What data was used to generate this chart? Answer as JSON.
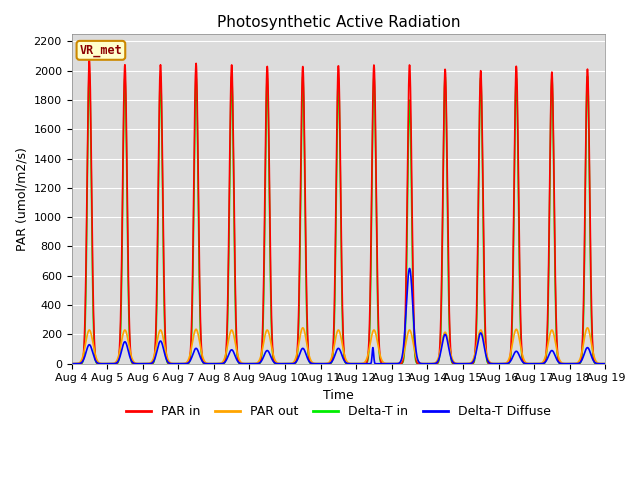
{
  "title": "Photosynthetic Active Radiation",
  "ylabel": "PAR (umol/m2/s)",
  "xlabel": "Time",
  "station_label": "VR_met",
  "ylim": [
    0,
    2250
  ],
  "colors": {
    "PAR in": "#ff0000",
    "PAR out": "#ffa500",
    "Delta-T in": "#00ee00",
    "Delta-T Diffuse": "#0000ff"
  },
  "x_tick_labels": [
    "Aug 4",
    "Aug 5",
    "Aug 6",
    "Aug 7",
    "Aug 8",
    "Aug 9",
    "Aug 10",
    "Aug 11",
    "Aug 12",
    "Aug 13",
    "Aug 14",
    "Aug 15",
    "Aug 16",
    "Aug 17",
    "Aug 18",
    "Aug 19"
  ],
  "num_days": 15,
  "background_color": "#dcdcdc",
  "title_fontsize": 11,
  "axis_label_fontsize": 9,
  "tick_fontsize": 8
}
